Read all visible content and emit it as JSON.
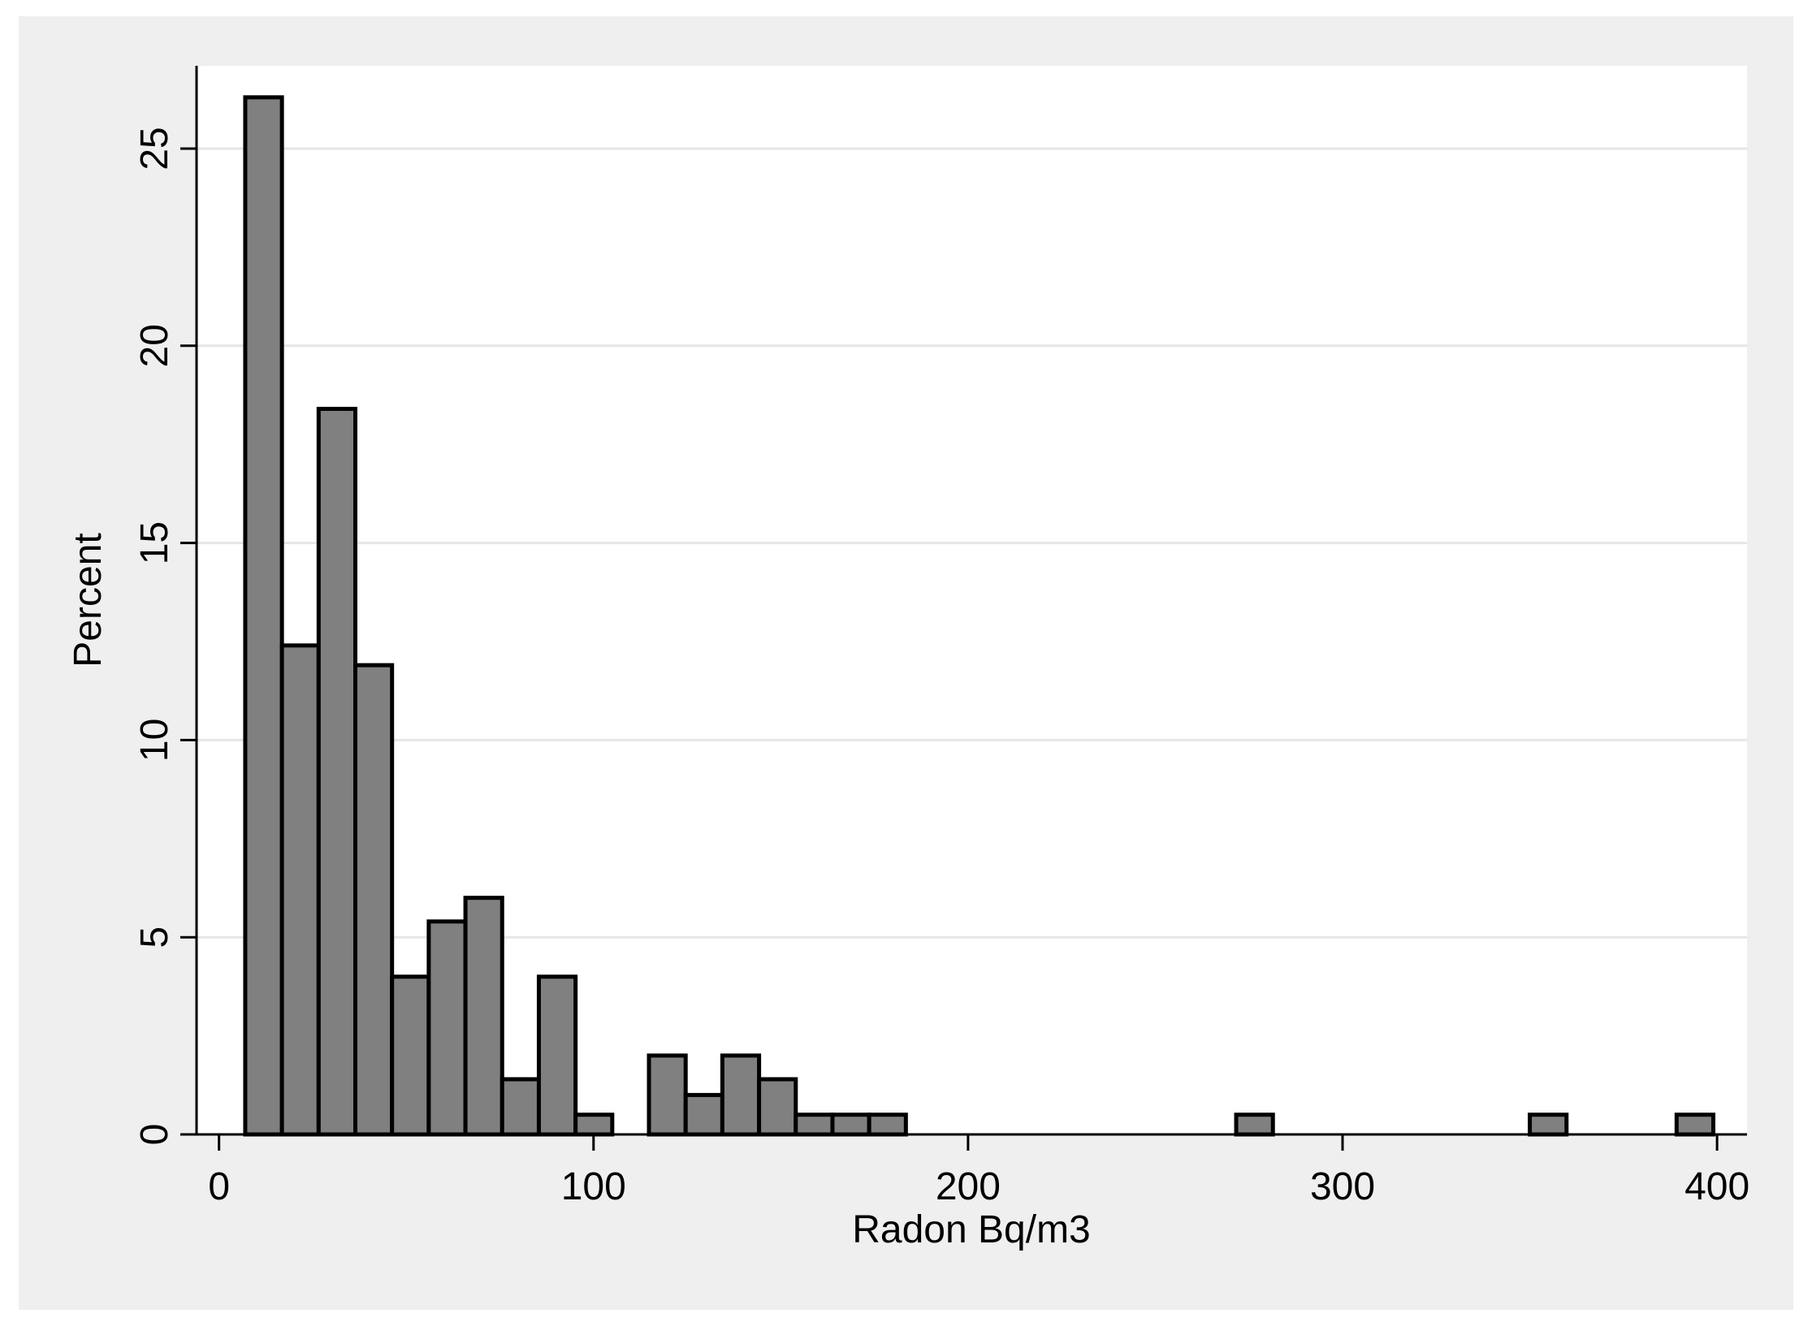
{
  "chart_data": {
    "type": "histogram",
    "x_label": "Radon Bq/m3",
    "y_label": "Percent",
    "bins": [
      7,
      16.8,
      26.6,
      36.4,
      46.2,
      56,
      65.8,
      75.6,
      85.4,
      95.2,
      105,
      114.8,
      124.6,
      134.4,
      144.2,
      154,
      163.8,
      173.6,
      183.4,
      193.2,
      203,
      212.8,
      222.6,
      232.4,
      242.2,
      252,
      261.8,
      271.6,
      281.4,
      291.2,
      301,
      310.8,
      320.6,
      330.4,
      340.2,
      350,
      359.8,
      369.6,
      379.4,
      389.2,
      399
    ],
    "values": [
      26.3,
      12.4,
      18.4,
      11.9,
      4.0,
      5.4,
      6.0,
      1.4,
      4.0,
      0.5,
      0,
      2.0,
      1.0,
      2.0,
      1.4,
      0.5,
      0.5,
      0.5,
      0,
      0,
      0,
      0,
      0,
      0,
      0,
      0,
      0,
      0.5,
      0,
      0,
      0,
      0,
      0,
      0,
      0,
      0.5,
      0,
      0,
      0,
      0.5
    ],
    "color": "#808080",
    "edge_color": "#000000",
    "xlim": [
      -6,
      408
    ],
    "xticks": [
      0,
      100,
      200,
      300,
      400
    ],
    "ylim": [
      0,
      27.1
    ],
    "yticks": [
      0,
      5,
      10,
      15,
      20,
      25
    ],
    "grid": true
  }
}
